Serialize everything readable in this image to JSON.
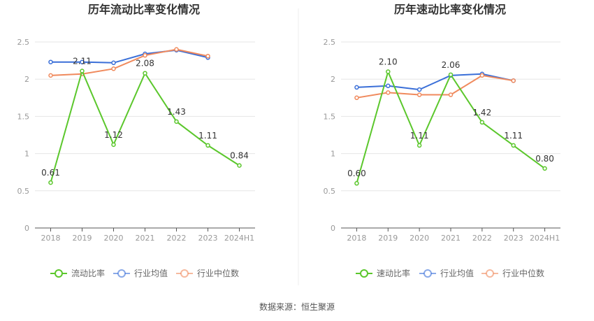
{
  "source_text": "数据来源：恒生聚源",
  "chart_data": [
    {
      "type": "line",
      "title": "历年流动比率变化情况",
      "categories": [
        "2018",
        "2019",
        "2020",
        "2021",
        "2022",
        "2023",
        "2024H1"
      ],
      "ylim": [
        0,
        2.5
      ],
      "yticks": [
        "0",
        "0.5",
        "1",
        "1.5",
        "2",
        "2.5"
      ],
      "grid": true,
      "legend_position": "bottom",
      "series": [
        {
          "name": "流动比率",
          "color": "#5bc72c",
          "values": [
            0.61,
            2.11,
            1.12,
            2.08,
            1.43,
            1.11,
            0.84
          ],
          "labels": [
            "0.61",
            "2.11",
            "1.12",
            "2.08",
            "1.43",
            "1.11",
            "0.84"
          ]
        },
        {
          "name": "行业均值",
          "color": "#3a6fd8",
          "values": [
            2.23,
            2.23,
            2.22,
            2.34,
            2.39,
            2.29,
            null
          ]
        },
        {
          "name": "行业中位数",
          "color": "#f08a5d",
          "values": [
            2.05,
            2.07,
            2.14,
            2.32,
            2.4,
            2.31,
            null
          ]
        }
      ]
    },
    {
      "type": "line",
      "title": "历年速动比率变化情况",
      "categories": [
        "2018",
        "2019",
        "2020",
        "2021",
        "2022",
        "2023",
        "2024H1"
      ],
      "ylim": [
        0,
        2.5
      ],
      "yticks": [
        "0",
        "0.5",
        "1",
        "1.5",
        "2",
        "2.5"
      ],
      "grid": true,
      "legend_position": "bottom",
      "series": [
        {
          "name": "速动比率",
          "color": "#5bc72c",
          "values": [
            0.6,
            2.1,
            1.11,
            2.06,
            1.42,
            1.11,
            0.8
          ],
          "labels": [
            "0.60",
            "2.10",
            "1.11",
            "2.06",
            "1.42",
            "1.11",
            "0.80"
          ]
        },
        {
          "name": "行业均值",
          "color": "#3a6fd8",
          "values": [
            1.89,
            1.91,
            1.86,
            2.05,
            2.07,
            1.98,
            null
          ]
        },
        {
          "name": "行业中位数",
          "color": "#f08a5d",
          "values": [
            1.75,
            1.82,
            1.79,
            1.79,
            2.05,
            1.98,
            null
          ]
        }
      ]
    }
  ]
}
